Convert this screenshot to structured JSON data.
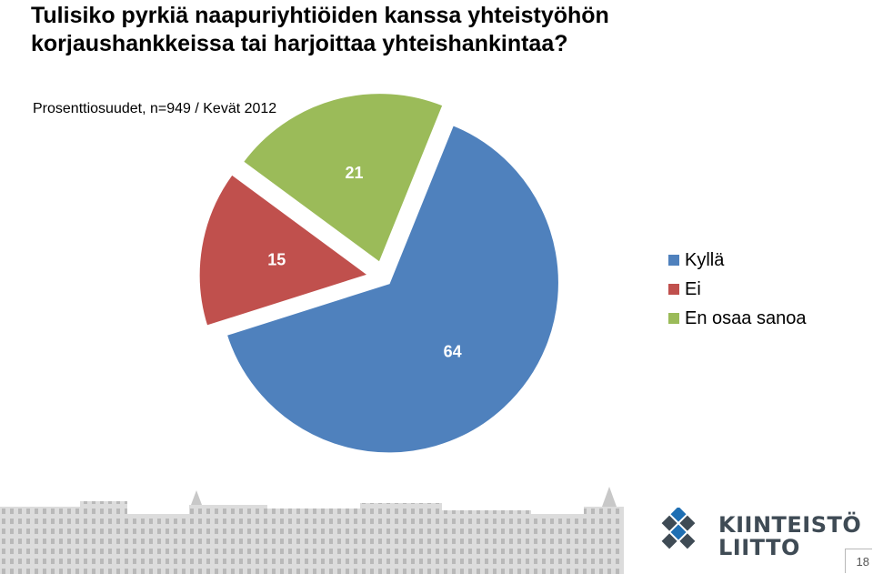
{
  "title": "Tulisiko pyrkiä naapuriyhtiöiden kanssa yhteistyöhön korjaushankkeissa tai harjoittaa yhteishankintaa?",
  "subtitle": "Prosenttiosuudet, n=949 / Kevät 2012",
  "chart_data": {
    "type": "pie",
    "title": "Tulisiko pyrkiä naapuriyhtiöiden kanssa yhteistyöhön korjaushankkeissa tai harjoittaa yhteishankintaa?",
    "subtitle": "Prosenttiosuudet, n=949 / Kevät 2012",
    "categories": [
      "Kyllä",
      "Ei",
      "En osaa sanoa"
    ],
    "values": [
      64,
      15,
      21
    ],
    "colors": [
      "#4f81bd",
      "#c0504d",
      "#9bbb59"
    ],
    "exploded": true,
    "legend": "right"
  },
  "logo": {
    "line1": "KIINTEISTÖ",
    "line2": "LIITTO",
    "colors": [
      "#1f6fb3",
      "#3f4b55"
    ]
  },
  "page_number": "18"
}
